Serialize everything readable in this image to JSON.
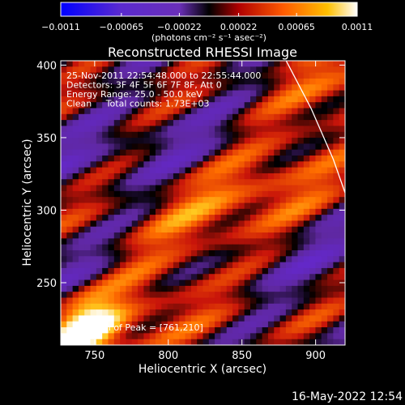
{
  "chart_data": {
    "type": "heatmap",
    "title": "Reconstructed RHESSI Image",
    "xlabel": "Heliocentric X (arcsec)",
    "ylabel": "Heliocentric Y (arcsec)",
    "xlim": [
      727,
      920
    ],
    "ylim": [
      207,
      403
    ],
    "x_ticks": [
      750,
      800,
      850,
      900
    ],
    "y_ticks": [
      250,
      300,
      350,
      400
    ],
    "colorbar": {
      "range": [
        -0.0011,
        0.0011
      ],
      "tick_values": [
        -0.0011,
        -0.00065,
        -0.00022,
        0.00022,
        0.00065,
        0.0011
      ],
      "tick_labels": [
        "−0.0011",
        "−0.00065",
        "−0.00022",
        "0.00022",
        "0.00065",
        "0.0011"
      ],
      "unit_label": "(photons cm⁻² s⁻¹ asec⁻²)"
    },
    "annotations": [
      "25-Nov-2011 22:54:48.000 to 22:55:44.000",
      "Detectors: 3F 4F 5F 6F 7F 8F, Att 0",
      "Energy Range: 25.0 - 50.0 keV",
      "Clean     Total counts: 1.73E+03"
    ],
    "peak_label": "Position of Peak = [761,210]",
    "peak": [
      761,
      210
    ],
    "limb_points": [
      [
        880,
        403
      ],
      [
        897,
        370
      ],
      [
        912,
        335
      ],
      [
        920,
        312
      ]
    ],
    "grid": false,
    "legend": "none"
  },
  "timestamp": "16-May-2022 12:54",
  "colors": {
    "background": "#000000",
    "text": "#ffffff",
    "colormap": [
      "#0000ff",
      "#6a2fb8",
      "#000000",
      "#d01212",
      "#ff7d00",
      "#ffffff"
    ]
  }
}
